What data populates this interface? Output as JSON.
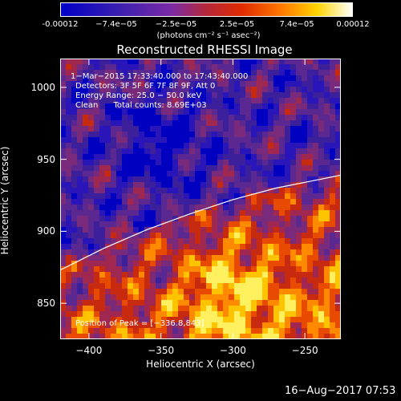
{
  "colorbar": {
    "ticks": [
      {
        "value": -0.00012,
        "label": "-0.00012"
      },
      {
        "value": -7.4e-05,
        "label": "−7.4e−05"
      },
      {
        "value": -2.5e-05,
        "label": "−2.5e−05"
      },
      {
        "value": 2.5e-05,
        "label": "2.5e−05"
      },
      {
        "value": 7.4e-05,
        "label": "7.4e−05"
      },
      {
        "value": 0.00012,
        "label": "0.00012"
      }
    ],
    "range": [
      -0.00012,
      0.00012
    ],
    "unit": "(photons cm⁻² s⁻¹ asec⁻²)"
  },
  "chart_data": {
    "type": "heatmap",
    "title": "Reconstructed RHESSI Image",
    "xlabel": "Heliocentric X (arcsec)",
    "ylabel": "Heliocentric Y (arcsec)",
    "xlim": [
      -420,
      -225
    ],
    "ylim": [
      825,
      1020
    ],
    "xticks": [
      {
        "value": -400,
        "label": "−400"
      },
      {
        "value": -350,
        "label": "−350"
      },
      {
        "value": -300,
        "label": "−300"
      },
      {
        "value": -250,
        "label": "−250"
      }
    ],
    "yticks": [
      {
        "value": 850,
        "label": "850"
      },
      {
        "value": 900,
        "label": "900"
      },
      {
        "value": 950,
        "label": "950"
      },
      {
        "value": 1000,
        "label": "1000"
      }
    ],
    "limb": {
      "x": [
        -420,
        -390,
        -360,
        -330,
        -300,
        -270,
        -240,
        -225
      ],
      "y": [
        873,
        888,
        901,
        912,
        922,
        930,
        936,
        939
      ]
    },
    "annotations": [
      "1−Mar−2015 17:33:40.000 to 17:43:40.000",
      "Detectors: 3F 5F 6F 7F 8F 9F, Att 0",
      "Energy Range: 25.0 − 50.0 keV",
      "Clean      Total counts: 8.69E+03"
    ],
    "peak": "Position of Peak = [−336.8,843]",
    "grid": false
  },
  "footer": {
    "timestamp": "16−Aug−2017 07:53"
  }
}
